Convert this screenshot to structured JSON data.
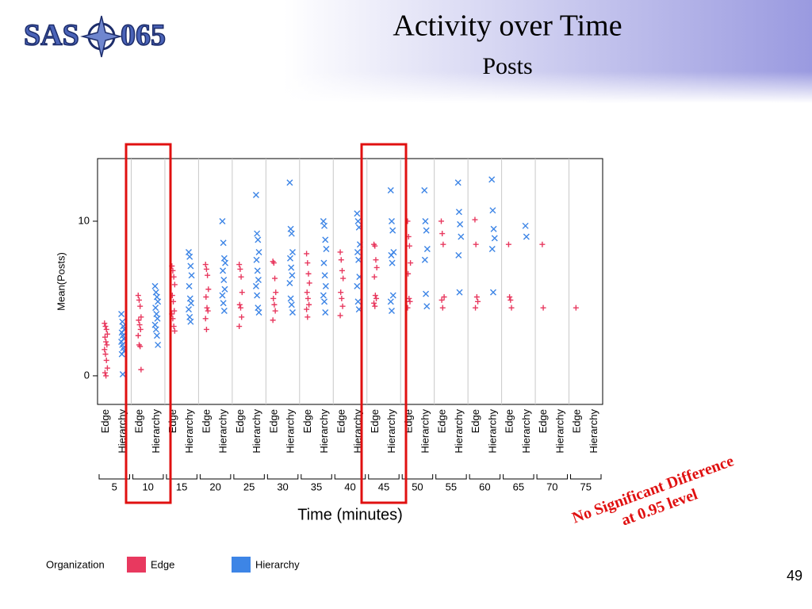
{
  "logo": {
    "left": "SAS",
    "right": "065"
  },
  "slide_title": "Activity over Time",
  "slide_subtitle": "Posts",
  "annotation": [
    "No Significant Difference",
    "at 0.95 level"
  ],
  "page_number": "49",
  "chart_data": {
    "type": "scatter",
    "x_label": "Time (minutes)",
    "y_label": "Mean(Posts)",
    "categories": [
      "5",
      "10",
      "15",
      "20",
      "25",
      "30",
      "35",
      "40",
      "45",
      "50",
      "55",
      "60",
      "65",
      "70",
      "75"
    ],
    "ylim": [
      -1.85,
      14.05
    ],
    "yticks": [
      0,
      10
    ],
    "grid": true,
    "legend_title": "Organization",
    "legend": "bottom",
    "series": [
      {
        "name": "Edge",
        "color": "#e8395f",
        "marker": "+",
        "values": [
          [
            3.4,
            3.2,
            3.0,
            2.7,
            2.5,
            2.2,
            2.0,
            1.7,
            1.4,
            1.0,
            0.5,
            0.2,
            0
          ],
          [
            5.2,
            4.9,
            4.5,
            3.8,
            3.6,
            3.3,
            3.0,
            2.6,
            2.0,
            1.9,
            0.4
          ],
          [
            7.1,
            6.8,
            6.4,
            5.9,
            5.2,
            4.8,
            4.2,
            4.0,
            3.7,
            3.2,
            2.9
          ],
          [
            7.2,
            6.9,
            6.5,
            5.6,
            5.1,
            4.4,
            4.2,
            3.7,
            3.0
          ],
          [
            7.2,
            6.9,
            6.4,
            5.4,
            4.6,
            4.4,
            3.8,
            3.2
          ],
          [
            7.4,
            7.3,
            6.3,
            5.4,
            5.0,
            4.6,
            4.2,
            3.6
          ],
          [
            7.9,
            7.3,
            6.6,
            6.0,
            5.4,
            5.0,
            4.6,
            4.3,
            3.8
          ],
          [
            8.0,
            7.5,
            6.8,
            6.3,
            5.4,
            5.0,
            4.5,
            3.9
          ],
          [
            8.5,
            8.4,
            7.5,
            7.0,
            6.4,
            5.2,
            5.0,
            4.7,
            4.5
          ],
          [
            10.0,
            9.0,
            8.4,
            7.3,
            6.6,
            5.0,
            4.8,
            4.4
          ],
          [
            10.0,
            9.2,
            8.5,
            5.1,
            4.9,
            4.4
          ],
          [
            10.1,
            8.5,
            5.1,
            4.8,
            4.4
          ],
          [
            8.5,
            5.1,
            4.9,
            4.4
          ],
          [
            8.5,
            4.4
          ],
          [
            4.4
          ]
        ]
      },
      {
        "name": "Hierarchy",
        "color": "#3d85e6",
        "marker": "x",
        "values": [
          [
            4.0,
            3.5,
            3.2,
            3.0,
            2.8,
            2.6,
            2.4,
            2.2,
            2.0,
            1.8,
            1.6,
            1.4,
            0.1
          ],
          [
            5.8,
            5.4,
            5.1,
            4.8,
            4.4,
            4.0,
            3.7,
            3.3,
            3.0,
            2.6,
            2.0
          ],
          [
            8.0,
            7.7,
            7.1,
            6.5,
            5.8,
            5.0,
            4.7,
            4.3,
            3.8,
            3.5
          ],
          [
            10.0,
            8.6,
            7.6,
            7.3,
            6.8,
            6.2,
            5.6,
            5.2,
            4.7,
            4.2
          ],
          [
            11.7,
            9.2,
            8.8,
            8.0,
            7.5,
            6.8,
            6.2,
            5.8,
            5.2,
            4.4,
            4.1
          ],
          [
            12.5,
            9.5,
            9.2,
            8.0,
            7.6,
            7.0,
            6.5,
            6.0,
            5.0,
            4.6,
            4.1
          ],
          [
            10.0,
            9.7,
            8.8,
            8.2,
            7.3,
            6.5,
            5.8,
            5.2,
            4.8,
            4.1
          ],
          [
            10.5,
            10.0,
            9.6,
            8.5,
            8.0,
            7.5,
            6.4,
            5.8,
            4.8,
            4.3
          ],
          [
            12.0,
            10.0,
            9.4,
            8.0,
            7.8,
            7.3,
            5.2,
            4.8,
            4.2
          ],
          [
            12.0,
            10.0,
            9.4,
            8.2,
            7.5,
            5.3,
            4.5
          ],
          [
            12.5,
            10.6,
            9.8,
            9.0,
            7.8,
            5.4
          ],
          [
            12.7,
            10.7,
            9.5,
            8.9,
            8.2,
            5.4
          ],
          [
            9.7,
            9.0
          ],
          [],
          []
        ]
      }
    ]
  }
}
